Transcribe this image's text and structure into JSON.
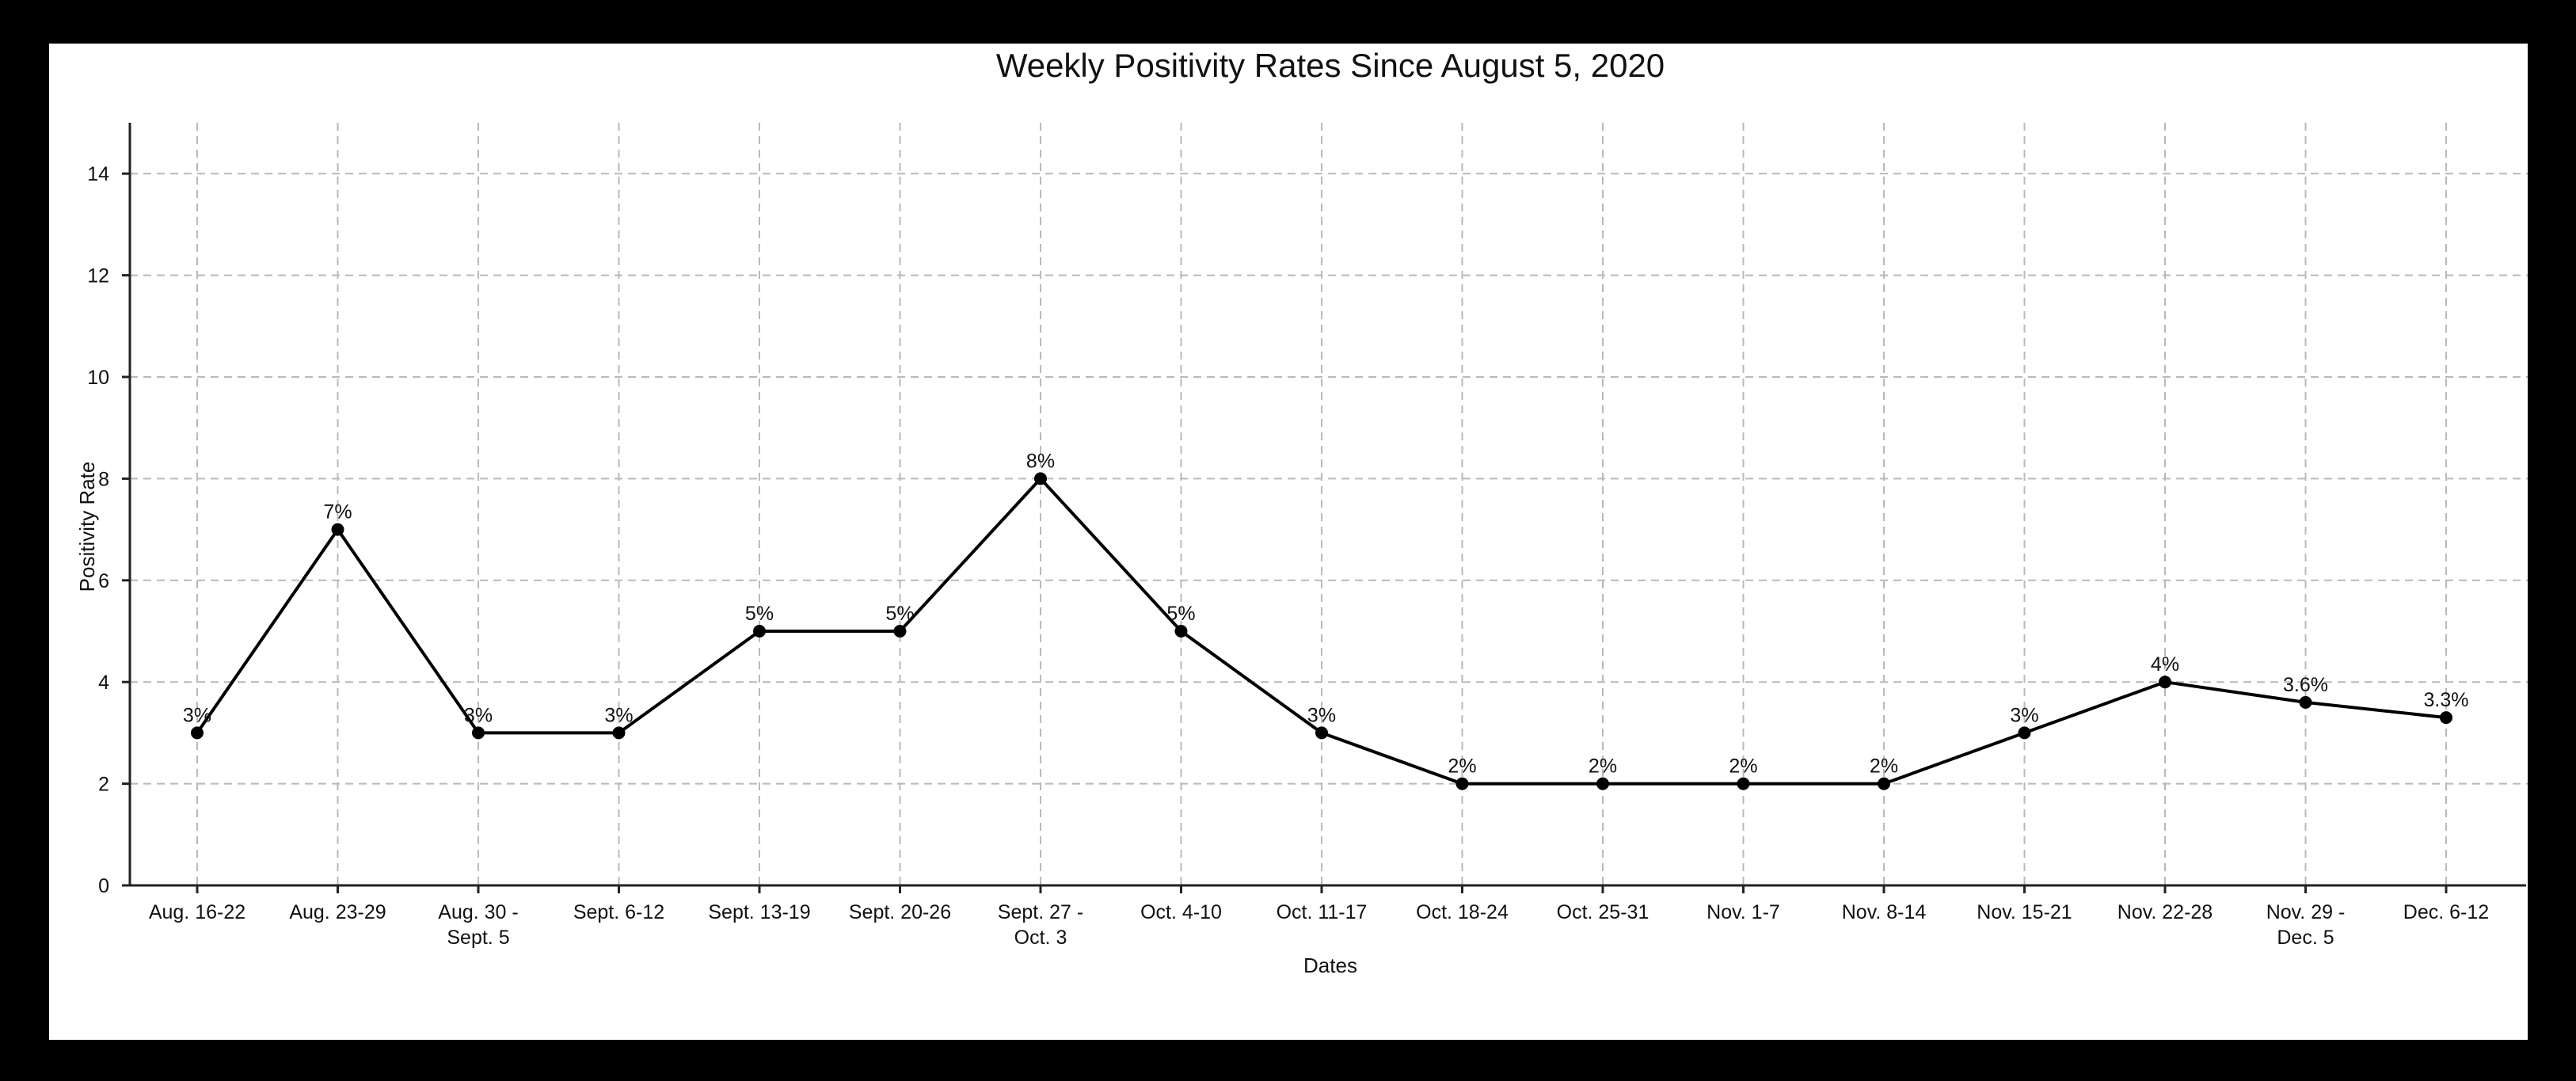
{
  "chart_data": {
    "type": "line",
    "title": "Weekly Positivity Rates Since August 5, 2020",
    "xlabel": "Dates",
    "ylabel": "Positivity Rate",
    "ylim": [
      0,
      15
    ],
    "yticks": [
      0,
      2,
      4,
      6,
      8,
      10,
      12,
      14
    ],
    "grid": true,
    "categories": [
      "Aug. 16-22",
      "Aug. 23-29",
      "Aug. 30 -\nSept. 5",
      "Sept. 6-12",
      "Sept. 13-19",
      "Sept. 20-26",
      "Sept. 27 -\nOct. 3",
      "Oct. 4-10",
      "Oct. 11-17",
      "Oct. 18-24",
      "Oct. 25-31",
      "Nov. 1-7",
      "Nov. 8-14",
      "Nov. 15-21",
      "Nov. 22-28",
      "Nov. 29 -\nDec. 5",
      "Dec. 6-12"
    ],
    "values": [
      3,
      7,
      3,
      3,
      5,
      5,
      8,
      5,
      3,
      2,
      2,
      2,
      2,
      3,
      4,
      3.6,
      3.3
    ],
    "data_labels": [
      "3%",
      "7%",
      "3%",
      "3%",
      "5%",
      "5%",
      "8%",
      "5%",
      "3%",
      "2%",
      "2%",
      "2%",
      "2%",
      "3%",
      "4%",
      "3.6%",
      "3.3%"
    ],
    "colors": {
      "line": "#000000",
      "grid": "#b9b9b9",
      "frame": "#000000"
    }
  }
}
